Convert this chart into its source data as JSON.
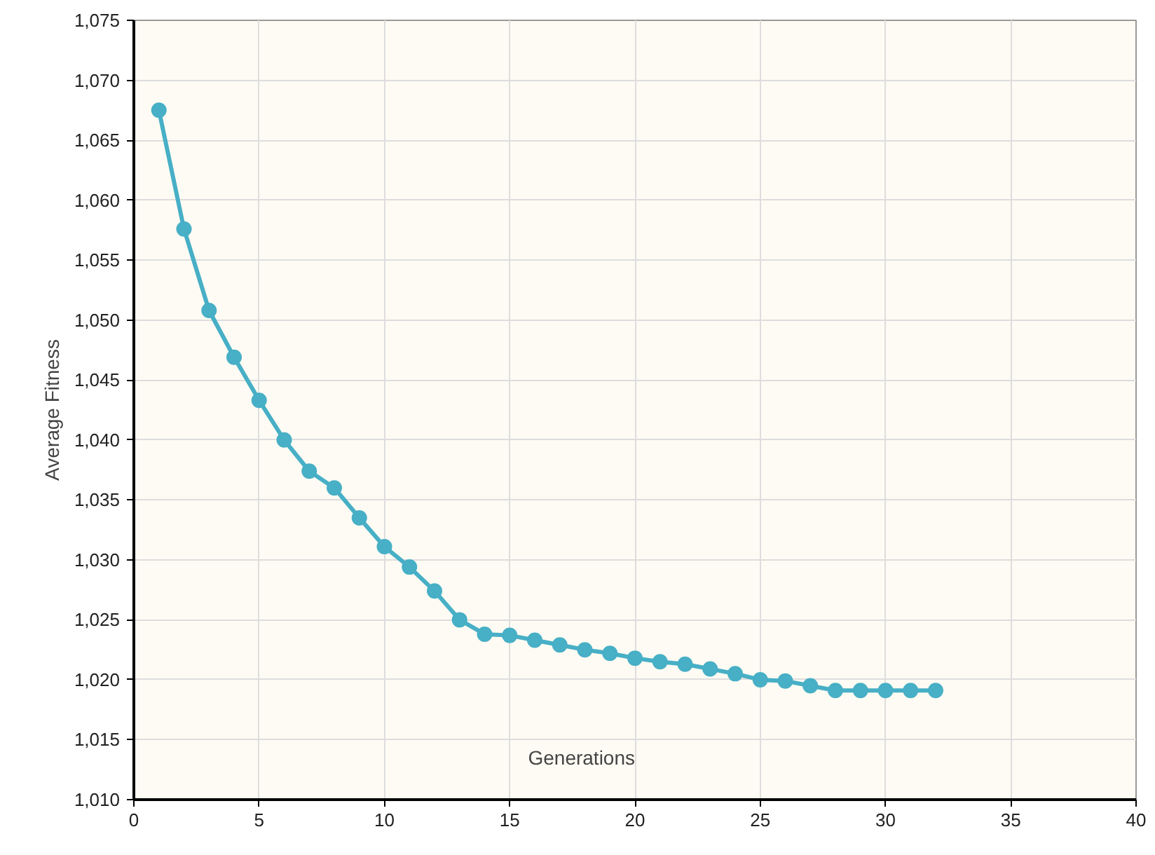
{
  "chart_data": {
    "type": "line",
    "xlabel": "Generations",
    "ylabel": "Average Fitness",
    "x": [
      1,
      2,
      3,
      4,
      5,
      6,
      7,
      8,
      9,
      10,
      11,
      12,
      13,
      14,
      15,
      16,
      17,
      18,
      19,
      20,
      21,
      22,
      23,
      24,
      25,
      26,
      27,
      28,
      29,
      30,
      31,
      32
    ],
    "series": [
      {
        "color": "#47afc6",
        "values": [
          1067.5,
          1057.6,
          1050.8,
          1046.9,
          1043.3,
          1040.0,
          1037.4,
          1036.0,
          1033.5,
          1031.1,
          1029.4,
          1027.4,
          1025.0,
          1023.8,
          1023.7,
          1023.3,
          1022.9,
          1022.5,
          1022.2,
          1021.8,
          1021.5,
          1021.3,
          1020.9,
          1020.5,
          1020.0,
          1019.9,
          1019.5,
          1019.1,
          1019.1,
          1019.1,
          1019.1,
          1019.1
        ]
      }
    ],
    "xlim": [
      0,
      40
    ],
    "xticks": [
      0,
      5,
      10,
      15,
      20,
      25,
      30,
      35,
      40
    ],
    "ylim": [
      1010,
      1075
    ],
    "yticks": [
      {
        "value": 1010,
        "label": "1,010"
      },
      {
        "value": 1015,
        "label": "1,015"
      },
      {
        "value": 1020,
        "label": "1,020"
      },
      {
        "value": 1025,
        "label": "1,025"
      },
      {
        "value": 1030,
        "label": "1,030"
      },
      {
        "value": 1035,
        "label": "1,035"
      },
      {
        "value": 1040,
        "label": "1,040"
      },
      {
        "value": 1045,
        "label": "1,045"
      },
      {
        "value": 1050,
        "label": "1,050"
      },
      {
        "value": 1055,
        "label": "1,055"
      },
      {
        "value": 1060,
        "label": "1,060"
      },
      {
        "value": 1065,
        "label": "1,065"
      },
      {
        "value": 1070,
        "label": "1,070"
      },
      {
        "value": 1075,
        "label": "1,075"
      }
    ],
    "grid": true,
    "marker": "circle",
    "line_style": "solid"
  }
}
